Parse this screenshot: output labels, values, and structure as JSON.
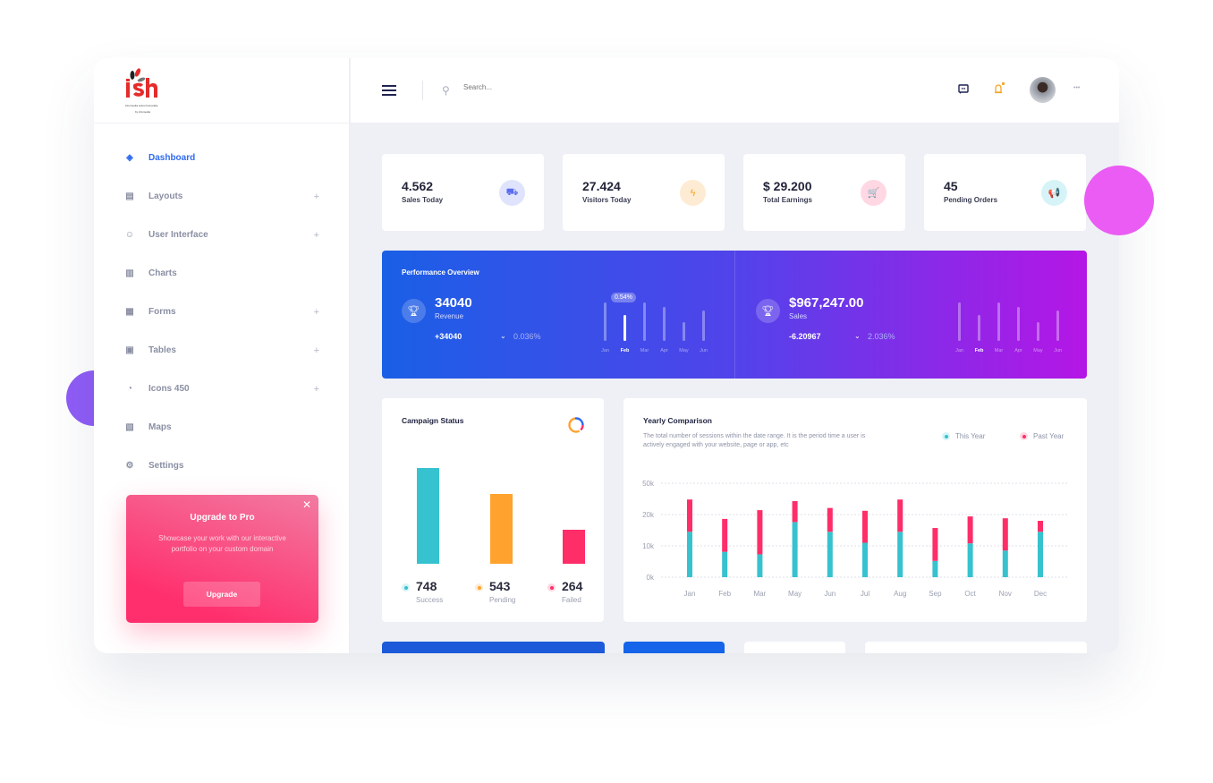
{
  "logo": {
    "text": "ish",
    "tagline": "informedia solusi humanika",
    "by": "by infomedia"
  },
  "sidebar": {
    "items": [
      {
        "label": "Dashboard",
        "icon": "layers-icon",
        "active": true,
        "expandable": false
      },
      {
        "label": "Layouts",
        "icon": "layout-icon",
        "expandable": true
      },
      {
        "label": "User Interface",
        "icon": "ghost-icon",
        "expandable": true
      },
      {
        "label": "Charts",
        "icon": "chart-icon",
        "expandable": false
      },
      {
        "label": "Forms",
        "icon": "form-icon",
        "expandable": true
      },
      {
        "label": "Tables",
        "icon": "table-icon",
        "expandable": true
      },
      {
        "label": "Icons 450",
        "icon": "stopwatch-icon",
        "expandable": true
      },
      {
        "label": "Maps",
        "icon": "map-icon",
        "expandable": false
      },
      {
        "label": "Settings",
        "icon": "gear-icon",
        "expandable": false
      }
    ],
    "plus": "+"
  },
  "promo": {
    "title": "Upgrade to Pro",
    "text": "Showcase your work with our interactive portfolio on your custom domain",
    "button": "Upgrade",
    "close": "✕"
  },
  "header": {
    "search_placeholder": "Search...",
    "more": "•••"
  },
  "stats": [
    {
      "value": "4.562",
      "label": "Sales Today",
      "icon": "truck-icon",
      "color": "#5b6cf0",
      "bg": "#dfe4fc",
      "glyph": "⛟"
    },
    {
      "value": "27.424",
      "label": "Visitors Today",
      "icon": "lightning-icon",
      "color": "#f5a623",
      "bg": "#fdebd3",
      "glyph": "ϟ"
    },
    {
      "value": "$ 29.200",
      "label": "Total Earnings",
      "icon": "cart-icon",
      "color": "#ff3b74",
      "bg": "#ffd8e3",
      "glyph": "🛒"
    },
    {
      "value": "45",
      "label": "Pending Orders",
      "icon": "megaphone-icon",
      "color": "#2ec5d3",
      "bg": "#d6f4f7",
      "glyph": "📢"
    }
  ],
  "performance": {
    "title": "Performance Overview",
    "revenue": {
      "value": "34040",
      "label": "Revenue",
      "delta": "+34040",
      "pct": "0.036%",
      "tooltip": "0.54%",
      "months": [
        "Jan",
        "Feb",
        "Mar",
        "Apr",
        "May",
        "Jun"
      ],
      "values": [
        43,
        29,
        43,
        38,
        21,
        34
      ],
      "selected": 1
    },
    "sales": {
      "value": "$967,247.00",
      "label": "Sales",
      "delta": "-6.20967",
      "pct": "2.036%",
      "months": [
        "Jan",
        "Feb",
        "Mar",
        "Apr",
        "May",
        "Jun"
      ],
      "values": [
        43,
        29,
        43,
        38,
        21,
        34
      ],
      "selected": 1
    }
  },
  "campaign": {
    "title": "Campaign Status",
    "items": [
      {
        "value": "748",
        "label": "Success",
        "color": "#36c2cf"
      },
      {
        "value": "543",
        "label": "Pending",
        "color": "#ffa22e"
      },
      {
        "value": "264",
        "label": "Failed",
        "color": "#ff2d68"
      }
    ]
  },
  "chart_data": {
    "type": "bar",
    "stacked": true,
    "title": "Yearly Comparison",
    "subtitle": "The total number of sessions within the date range. It is the period time a user is actively engaged with your website, page or app, etc",
    "categories": [
      "Jan",
      "Feb",
      "Mar",
      "May",
      "Jun",
      "Jul",
      "Aug",
      "Sep",
      "Oct",
      "Nov",
      "Dec"
    ],
    "y_ticks": [
      "0k",
      "10k",
      "20k",
      "50k"
    ],
    "grid": true,
    "legend": "top-right",
    "series": [
      {
        "name": "This Year",
        "color": "#36c2cf",
        "values": [
          14.5,
          8.1,
          7.3,
          17.6,
          14.5,
          11,
          14.5,
          5.2,
          10.8,
          8.5,
          14.5
        ]
      },
      {
        "name": "Past Year",
        "color": "#ff2d68",
        "values": [
          10.3,
          10.5,
          14.1,
          6.7,
          7.6,
          10.2,
          10.3,
          10.5,
          8.6,
          10.3,
          3.5
        ]
      }
    ]
  }
}
